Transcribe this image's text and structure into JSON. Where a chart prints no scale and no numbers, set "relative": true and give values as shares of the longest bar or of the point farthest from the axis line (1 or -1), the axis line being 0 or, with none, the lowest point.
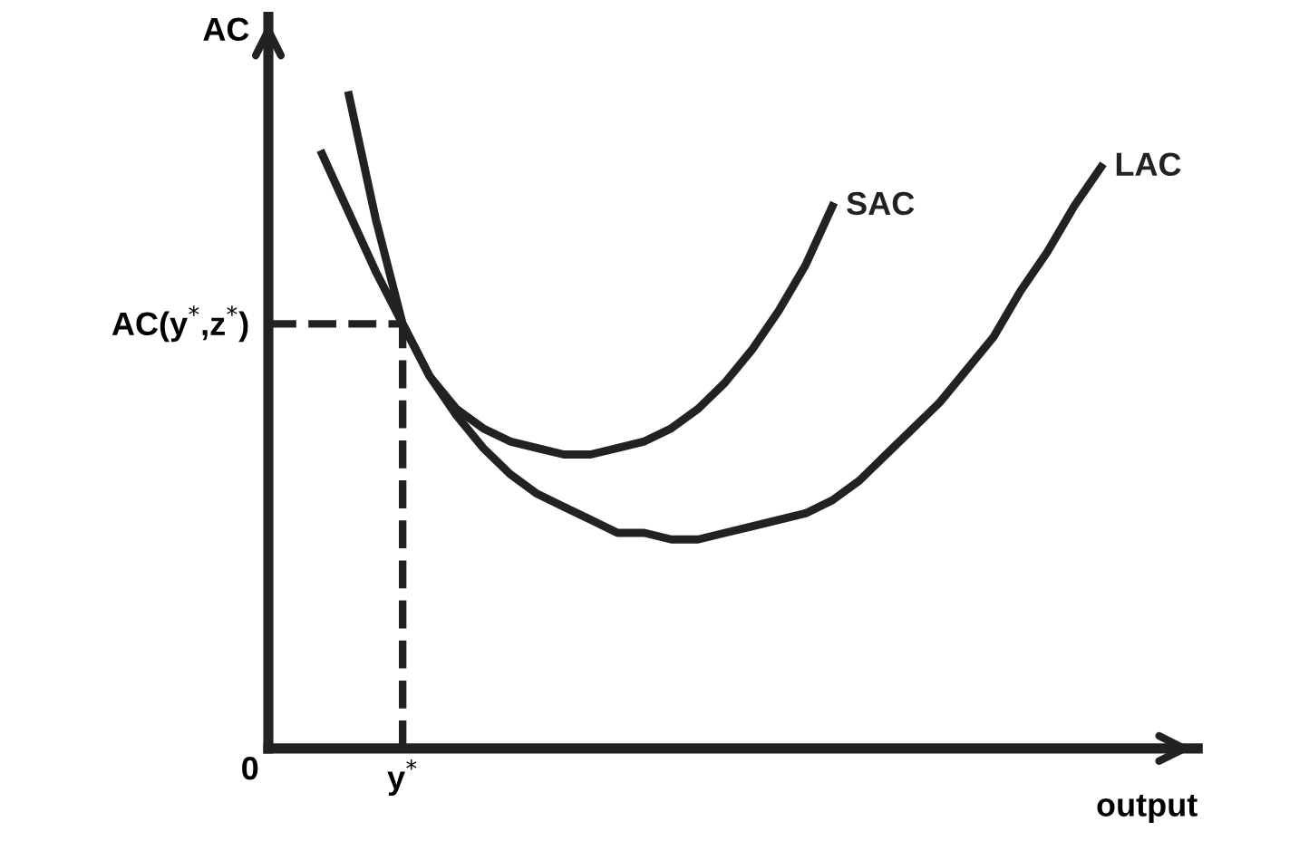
{
  "chart_data": {
    "type": "line",
    "relative": true,
    "ylabel": "AC",
    "xlabel": "output",
    "categories": [
      null,
      null,
      null,
      null,
      null,
      null,
      null,
      null,
      null,
      null,
      null,
      null,
      null,
      null,
      null,
      null,
      null,
      null,
      null,
      null,
      null,
      null,
      null,
      null,
      null,
      null,
      null,
      null,
      null,
      null,
      null,
      null
    ],
    "series": [
      {
        "name": "SAC",
        "color": "#222222",
        "values": [
          null,
          null,
          null,
          1,
          0.81,
          0.65,
          0.57,
          0.52,
          0.49,
          0.47,
          0.46,
          0.45,
          0.45,
          0.46,
          0.47,
          0.49,
          0.52,
          0.56,
          0.61,
          0.67,
          0.74,
          0.83,
          null,
          null,
          null,
          null,
          null,
          null,
          null,
          null,
          null,
          null
        ]
      },
      {
        "name": "LAC",
        "color": "#222222",
        "values": [
          null,
          null,
          0.91,
          0.82,
          0.73,
          0.65,
          0.57,
          0.51,
          0.46,
          0.42,
          0.39,
          0.37,
          0.35,
          0.33,
          0.33,
          0.32,
          0.32,
          0.33,
          0.34,
          0.35,
          0.36,
          0.38,
          0.41,
          0.45,
          0.49,
          0.53,
          0.58,
          0.63,
          0.7,
          0.76,
          0.83,
          0.89
        ]
      }
    ],
    "ref_lines": [
      {
        "axis": "y",
        "value": 0.65,
        "label": "AC(y$^{*}$,z$^{*}$)",
        "color": "#222222",
        "line_style": "dashed"
      }
    ],
    "annotations": [
      "0",
      "y$^{*}$"
    ],
    "marker": "none",
    "line_style": "solid"
  }
}
